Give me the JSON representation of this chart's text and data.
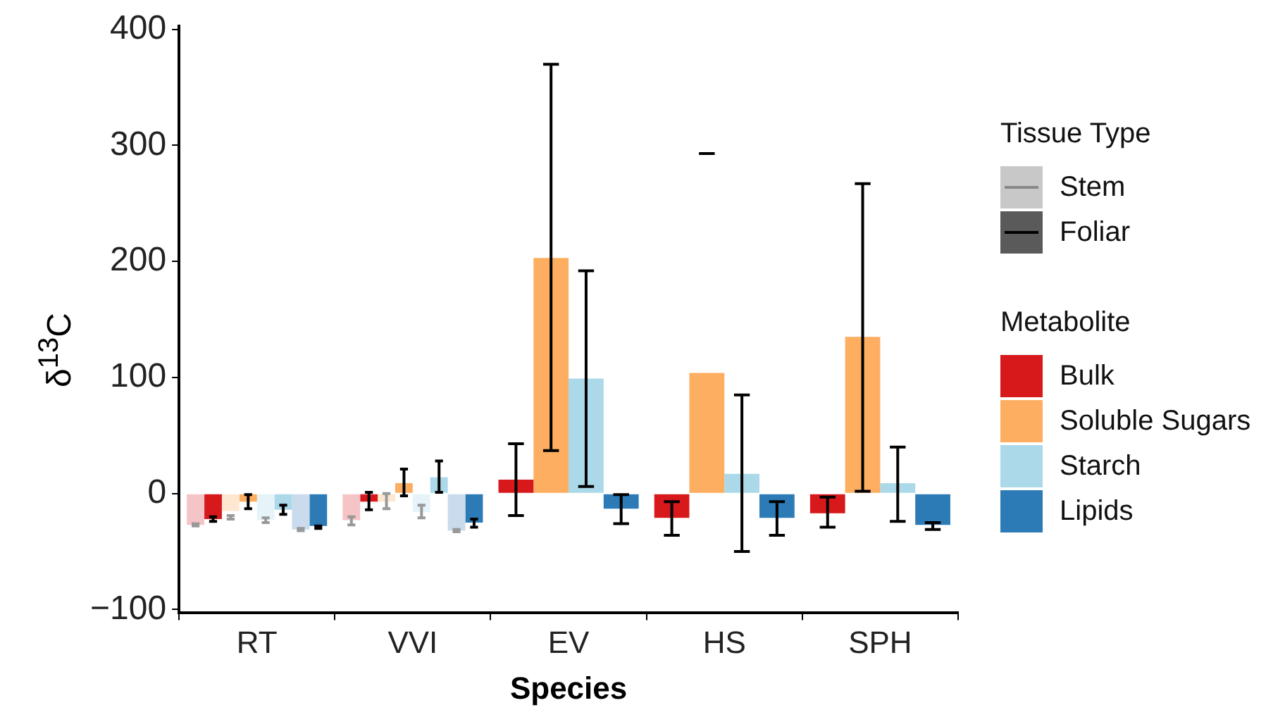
{
  "chart_data": {
    "type": "bar",
    "xlabel": "Species",
    "ylabel": "δ$^{13}$C",
    "legend_title": "Metabolite",
    "legend": "right",
    "annotations": [
      "Tissue Type",
      "Stem",
      "Foliar"
    ],
    "categories": [
      "RT",
      "VVI",
      "EV",
      "HS",
      "SPH"
    ],
    "ylim": [
      -103,
      403
    ],
    "yticks": [
      {
        "value": -100,
        "label": "−100"
      },
      0,
      100,
      200,
      300,
      400
    ],
    "grid": false,
    "series": [
      {
        "color": "#f4c4c6",
        "values": [
          -27,
          -23,
          null,
          null,
          null
        ],
        "errors": [
          [
            -26,
            -28
          ],
          [
            -20,
            -27
          ],
          null,
          null,
          null
        ]
      },
      {
        "name": "Bulk",
        "color": "#d7191c",
        "values": [
          -22,
          -7,
          12,
          -21,
          -17
        ],
        "errors": [
          [
            -20,
            -24
          ],
          [
            1,
            -14
          ],
          [
            43,
            -19
          ],
          [
            -7,
            -36
          ],
          [
            -3,
            -29
          ]
        ]
      },
      {
        "color": "#fee7d0",
        "values": [
          -15,
          -7,
          null,
          null,
          null
        ],
        "errors": [
          [
            -19,
            -22
          ],
          [
            0,
            -13
          ],
          null,
          null,
          null
        ]
      },
      {
        "name": "Soluble Sugars",
        "color": "#fdae61",
        "values": [
          -7,
          9,
          203,
          104,
          135
        ],
        "errors": [
          [
            -1,
            -13
          ],
          [
            21,
            -2
          ],
          [
            370,
            37
          ],
          [
            293,
            293
          ],
          [
            267,
            2
          ]
        ]
      },
      {
        "color": "#e6f4f9",
        "values": [
          -23,
          -16,
          null,
          null,
          null
        ],
        "errors": [
          [
            -21,
            -25
          ],
          [
            -10,
            -21
          ],
          null,
          null,
          null
        ]
      },
      {
        "name": "Starch",
        "color": "#abd9e9",
        "values": [
          -14,
          14,
          99,
          17,
          9
        ],
        "errors": [
          [
            -10,
            -18
          ],
          [
            28,
            1
          ],
          [
            192,
            6
          ],
          [
            85,
            -50
          ],
          [
            40,
            -24
          ]
        ]
      },
      {
        "color": "#c9dbec",
        "values": [
          -31,
          -32,
          null,
          null,
          null
        ],
        "errors": [
          [
            -30,
            -32
          ],
          [
            -31,
            -33
          ],
          null,
          null,
          null
        ]
      },
      {
        "name": "Lipids",
        "color": "#2c7bb6",
        "values": [
          -28,
          -25,
          -13,
          -21,
          -27
        ],
        "errors": [
          [
            -28,
            -30
          ],
          [
            -22,
            -29
          ],
          [
            -1,
            -26
          ],
          [
            -7,
            -36
          ],
          [
            -25,
            -31
          ]
        ]
      }
    ]
  }
}
